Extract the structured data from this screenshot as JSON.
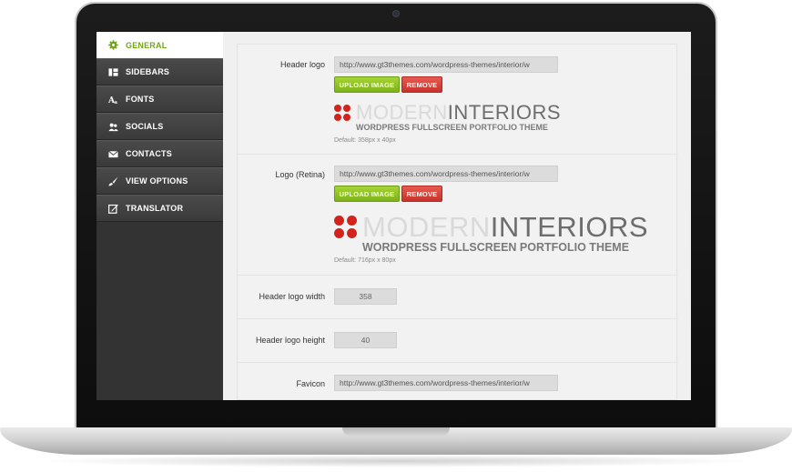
{
  "sidebar": {
    "items": [
      {
        "label": "GENERAL",
        "icon": "gear-icon",
        "active": true
      },
      {
        "label": "SIDEBARS",
        "icon": "sidebars-icon"
      },
      {
        "label": "FONTS",
        "icon": "fonts-icon"
      },
      {
        "label": "SOCIALS",
        "icon": "users-icon"
      },
      {
        "label": "CONTACTS",
        "icon": "envelope-icon"
      },
      {
        "label": "VIEW OPTIONS",
        "icon": "brush-icon"
      },
      {
        "label": "TRANSLATOR",
        "icon": "edit-icon"
      }
    ]
  },
  "fields": {
    "header_logo": {
      "label": "Header logo",
      "value": "http://www.gt3themes.com/wordpress-themes/interior/w",
      "upload_label": "UPLOAD IMAGE",
      "remove_label": "REMOVE",
      "logo_word1": "MODERN",
      "logo_word2": "INTERIORS",
      "logo_tagline": "WORDPRESS FULLSCREEN PORTFOLIO THEME",
      "hint": "Default: 358px x 40px"
    },
    "logo_retina": {
      "label": "Logo (Retina)",
      "value": "http://www.gt3themes.com/wordpress-themes/interior/w",
      "upload_label": "UPLOAD IMAGE",
      "remove_label": "REMOVE",
      "logo_word1": "MODERN",
      "logo_word2": "INTERIORS",
      "logo_tagline": "WORDPRESS FULLSCREEN PORTFOLIO THEME",
      "hint": "Default: 716px x 80px"
    },
    "header_logo_width": {
      "label": "Header logo width",
      "value": "358"
    },
    "header_logo_height": {
      "label": "Header logo height",
      "value": "40"
    },
    "favicon": {
      "label": "Favicon",
      "value": "http://www.gt3themes.com/wordpress-themes/interior/w"
    }
  },
  "colors": {
    "accent": "#72a61b",
    "upload_button": "#8cc22a",
    "remove_button": "#d6443b",
    "logo_red": "#d4221c",
    "sidebar_bg": "#333333"
  }
}
